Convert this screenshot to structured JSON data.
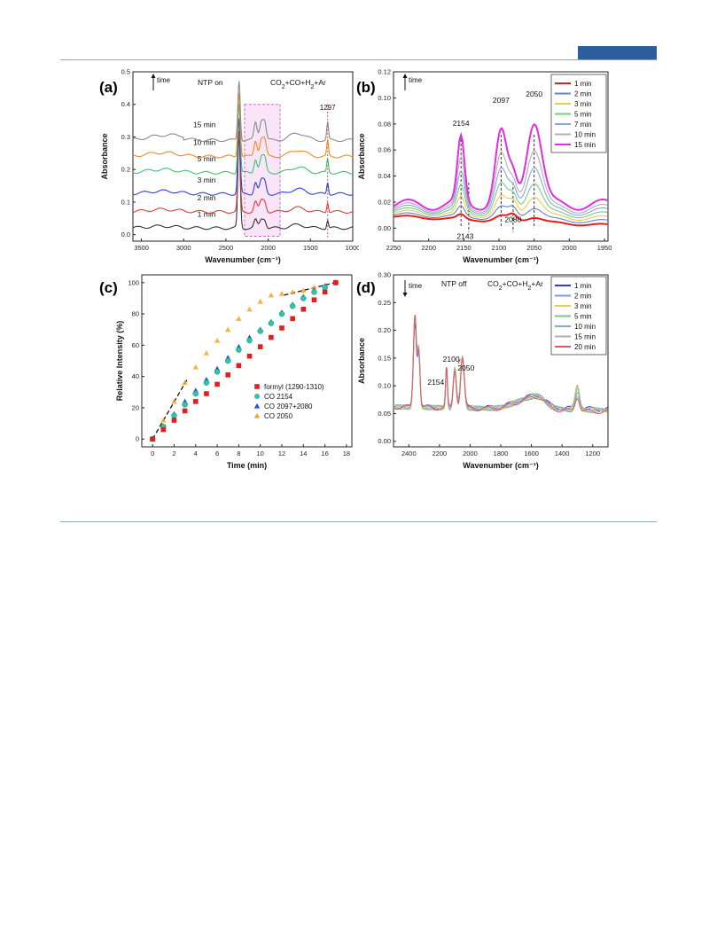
{
  "page": {
    "accent": "#2e5d9e",
    "rule": "#8ea9c8"
  },
  "chart_data": [
    {
      "id": "a",
      "type": "line",
      "panel_label": "(a)",
      "annotations": {
        "mode": "NTP on",
        "gas_html": "CO<tspan baseline-shift='sub' font-size='7'>2</tspan>+CO+H<tspan baseline-shift='sub' font-size='7'>2</tspan>+Ar",
        "gas": "CO2+CO+H2+Ar",
        "arrow": "time",
        "peak": "1297"
      },
      "xlabel": "Wavenumber (cm⁻¹)",
      "ylabel": "Absorbance",
      "xlim": [
        3600,
        1000
      ],
      "ylim": [
        -0.02,
        0.5
      ],
      "xticks": [
        3500,
        3000,
        2500,
        2000,
        1500,
        1000
      ],
      "yticks": [
        0.0,
        0.1,
        0.2,
        0.3,
        0.4,
        0.5
      ],
      "ytick_labels": [
        "0.0",
        "0.1",
        "0.2",
        "0.3",
        "0.4",
        "0.5"
      ],
      "series": [
        {
          "name": "1 min",
          "color": "#333333",
          "offset": 0.02,
          "label_y": 0.055
        },
        {
          "name": "2 min",
          "color": "#e03a3a",
          "offset": 0.07,
          "label_y": 0.105
        },
        {
          "name": "3 min",
          "color": "#2b3fe0",
          "offset": 0.125,
          "label_y": 0.16
        },
        {
          "name": "5 min",
          "color": "#3ec070",
          "offset": 0.19,
          "label_y": 0.225
        },
        {
          "name": "10 min",
          "color": "#f08a1e",
          "offset": 0.24,
          "label_y": 0.275
        },
        {
          "name": "15 min",
          "color": "#8a8a8a",
          "offset": 0.29,
          "label_y": 0.33
        }
      ]
    },
    {
      "id": "b",
      "type": "line",
      "panel_label": "(b)",
      "annotations": {
        "arrow": "time",
        "peaks": [
          "2154",
          "2097",
          "2050",
          "2143",
          "2080"
        ]
      },
      "xlabel": "Wavenumber (cm⁻¹)",
      "ylabel": "Absorbance",
      "xlim": [
        2250,
        1945
      ],
      "ylim": [
        -0.01,
        0.12
      ],
      "xticks": [
        2250,
        2200,
        2150,
        2100,
        2050,
        2000,
        1950
      ],
      "yticks": [
        0.0,
        0.02,
        0.04,
        0.06,
        0.08,
        0.1,
        0.12
      ],
      "ytick_labels": [
        "0.00",
        "0.02",
        "0.04",
        "0.06",
        "0.08",
        "0.10",
        "0.12"
      ],
      "legend": "top-right",
      "series": [
        {
          "name": "1 min",
          "color": "#e02020",
          "scale": 0.25
        },
        {
          "name": "2 min",
          "color": "#5f86c8",
          "scale": 0.38
        },
        {
          "name": "3 min",
          "color": "#f2c94c",
          "scale": 0.5
        },
        {
          "name": "5 min",
          "color": "#6fcf7f",
          "scale": 0.62
        },
        {
          "name": "7 min",
          "color": "#8ea3d6",
          "scale": 0.74
        },
        {
          "name": "10 min",
          "color": "#b0b0b0",
          "scale": 0.85
        },
        {
          "name": "15 min",
          "color": "#e02ee0",
          "scale": 1.0
        }
      ]
    },
    {
      "id": "c",
      "type": "scatter",
      "panel_label": "(c)",
      "xlabel": "Time (min)",
      "ylabel": "Relative Intensity (%)",
      "xlim": [
        -1,
        18.5
      ],
      "ylim": [
        -5,
        105
      ],
      "xticks": [
        0,
        2,
        4,
        6,
        8,
        10,
        12,
        14,
        16,
        18
      ],
      "yticks": [
        0,
        20,
        40,
        60,
        80,
        100
      ],
      "legend": "bottom-right",
      "x": [
        0,
        1,
        2,
        3,
        4,
        5,
        6,
        7,
        8,
        9,
        10,
        11,
        12,
        13,
        14,
        15,
        16,
        17
      ],
      "series": [
        {
          "name": "formyl (1290-1310)",
          "color": "#e02020",
          "marker": "square",
          "values": [
            0,
            6,
            12,
            18,
            24,
            29,
            35,
            41,
            47,
            53,
            59,
            65,
            71,
            77,
            83,
            89,
            94,
            100
          ]
        },
        {
          "name": "CO 2154",
          "color": "#2ec4a6",
          "marker": "circle",
          "values": [
            0,
            8,
            15,
            22,
            29,
            36,
            43,
            50,
            57,
            63,
            69,
            74,
            80,
            85,
            90,
            94,
            97,
            100
          ]
        },
        {
          "name": "CO 2097+2080",
          "color": "#2b4fe0",
          "marker": "triangle",
          "values": [
            0,
            8,
            16,
            24,
            31,
            38,
            45,
            52,
            59,
            65,
            70,
            75,
            81,
            86,
            91,
            95,
            98,
            100
          ]
        },
        {
          "name": "CO 2050",
          "color": "#f5a623",
          "marker": "triangle",
          "values": [
            0,
            12,
            24,
            36,
            46,
            55,
            63,
            70,
            77,
            83,
            88,
            92,
            93,
            94,
            95,
            97,
            98,
            100
          ]
        }
      ]
    },
    {
      "id": "d",
      "type": "line",
      "panel_label": "(d)",
      "annotations": {
        "mode": "NTP off",
        "gas_html": "CO<tspan baseline-shift='sub' font-size='7'>2</tspan>+CO+H<tspan baseline-shift='sub' font-size='7'>2</tspan>+Ar",
        "gas": "CO2+CO+H2+Ar",
        "arrow": "time",
        "peaks": [
          "2100",
          "2050",
          "2154"
        ]
      },
      "xlabel": "Wavenumber (cm⁻¹)",
      "ylabel": "Absorbance",
      "xlim": [
        2500,
        1100
      ],
      "ylim": [
        -0.01,
        0.3
      ],
      "xticks": [
        2400,
        2200,
        2000,
        1800,
        1600,
        1400,
        1200
      ],
      "yticks": [
        0.0,
        0.05,
        0.1,
        0.15,
        0.2,
        0.25,
        0.3
      ],
      "ytick_labels": [
        "0.00",
        "0.05",
        "0.10",
        "0.15",
        "0.20",
        "0.25",
        "0.30"
      ],
      "legend": "top-right",
      "series": [
        {
          "name": "1 min",
          "color": "#2b3fe0",
          "scale": 1.0
        },
        {
          "name": "2 min",
          "color": "#7e9bd8",
          "scale": 0.96
        },
        {
          "name": "3 min",
          "color": "#f2c94c",
          "scale": 0.92
        },
        {
          "name": "5 min",
          "color": "#6fcf7f",
          "scale": 0.88
        },
        {
          "name": "10 min",
          "color": "#8ea3d6",
          "scale": 0.84
        },
        {
          "name": "15 min",
          "color": "#b0b0b0",
          "scale": 0.8
        },
        {
          "name": "20 min",
          "color": "#e05a5a",
          "scale": 0.76
        }
      ]
    }
  ]
}
